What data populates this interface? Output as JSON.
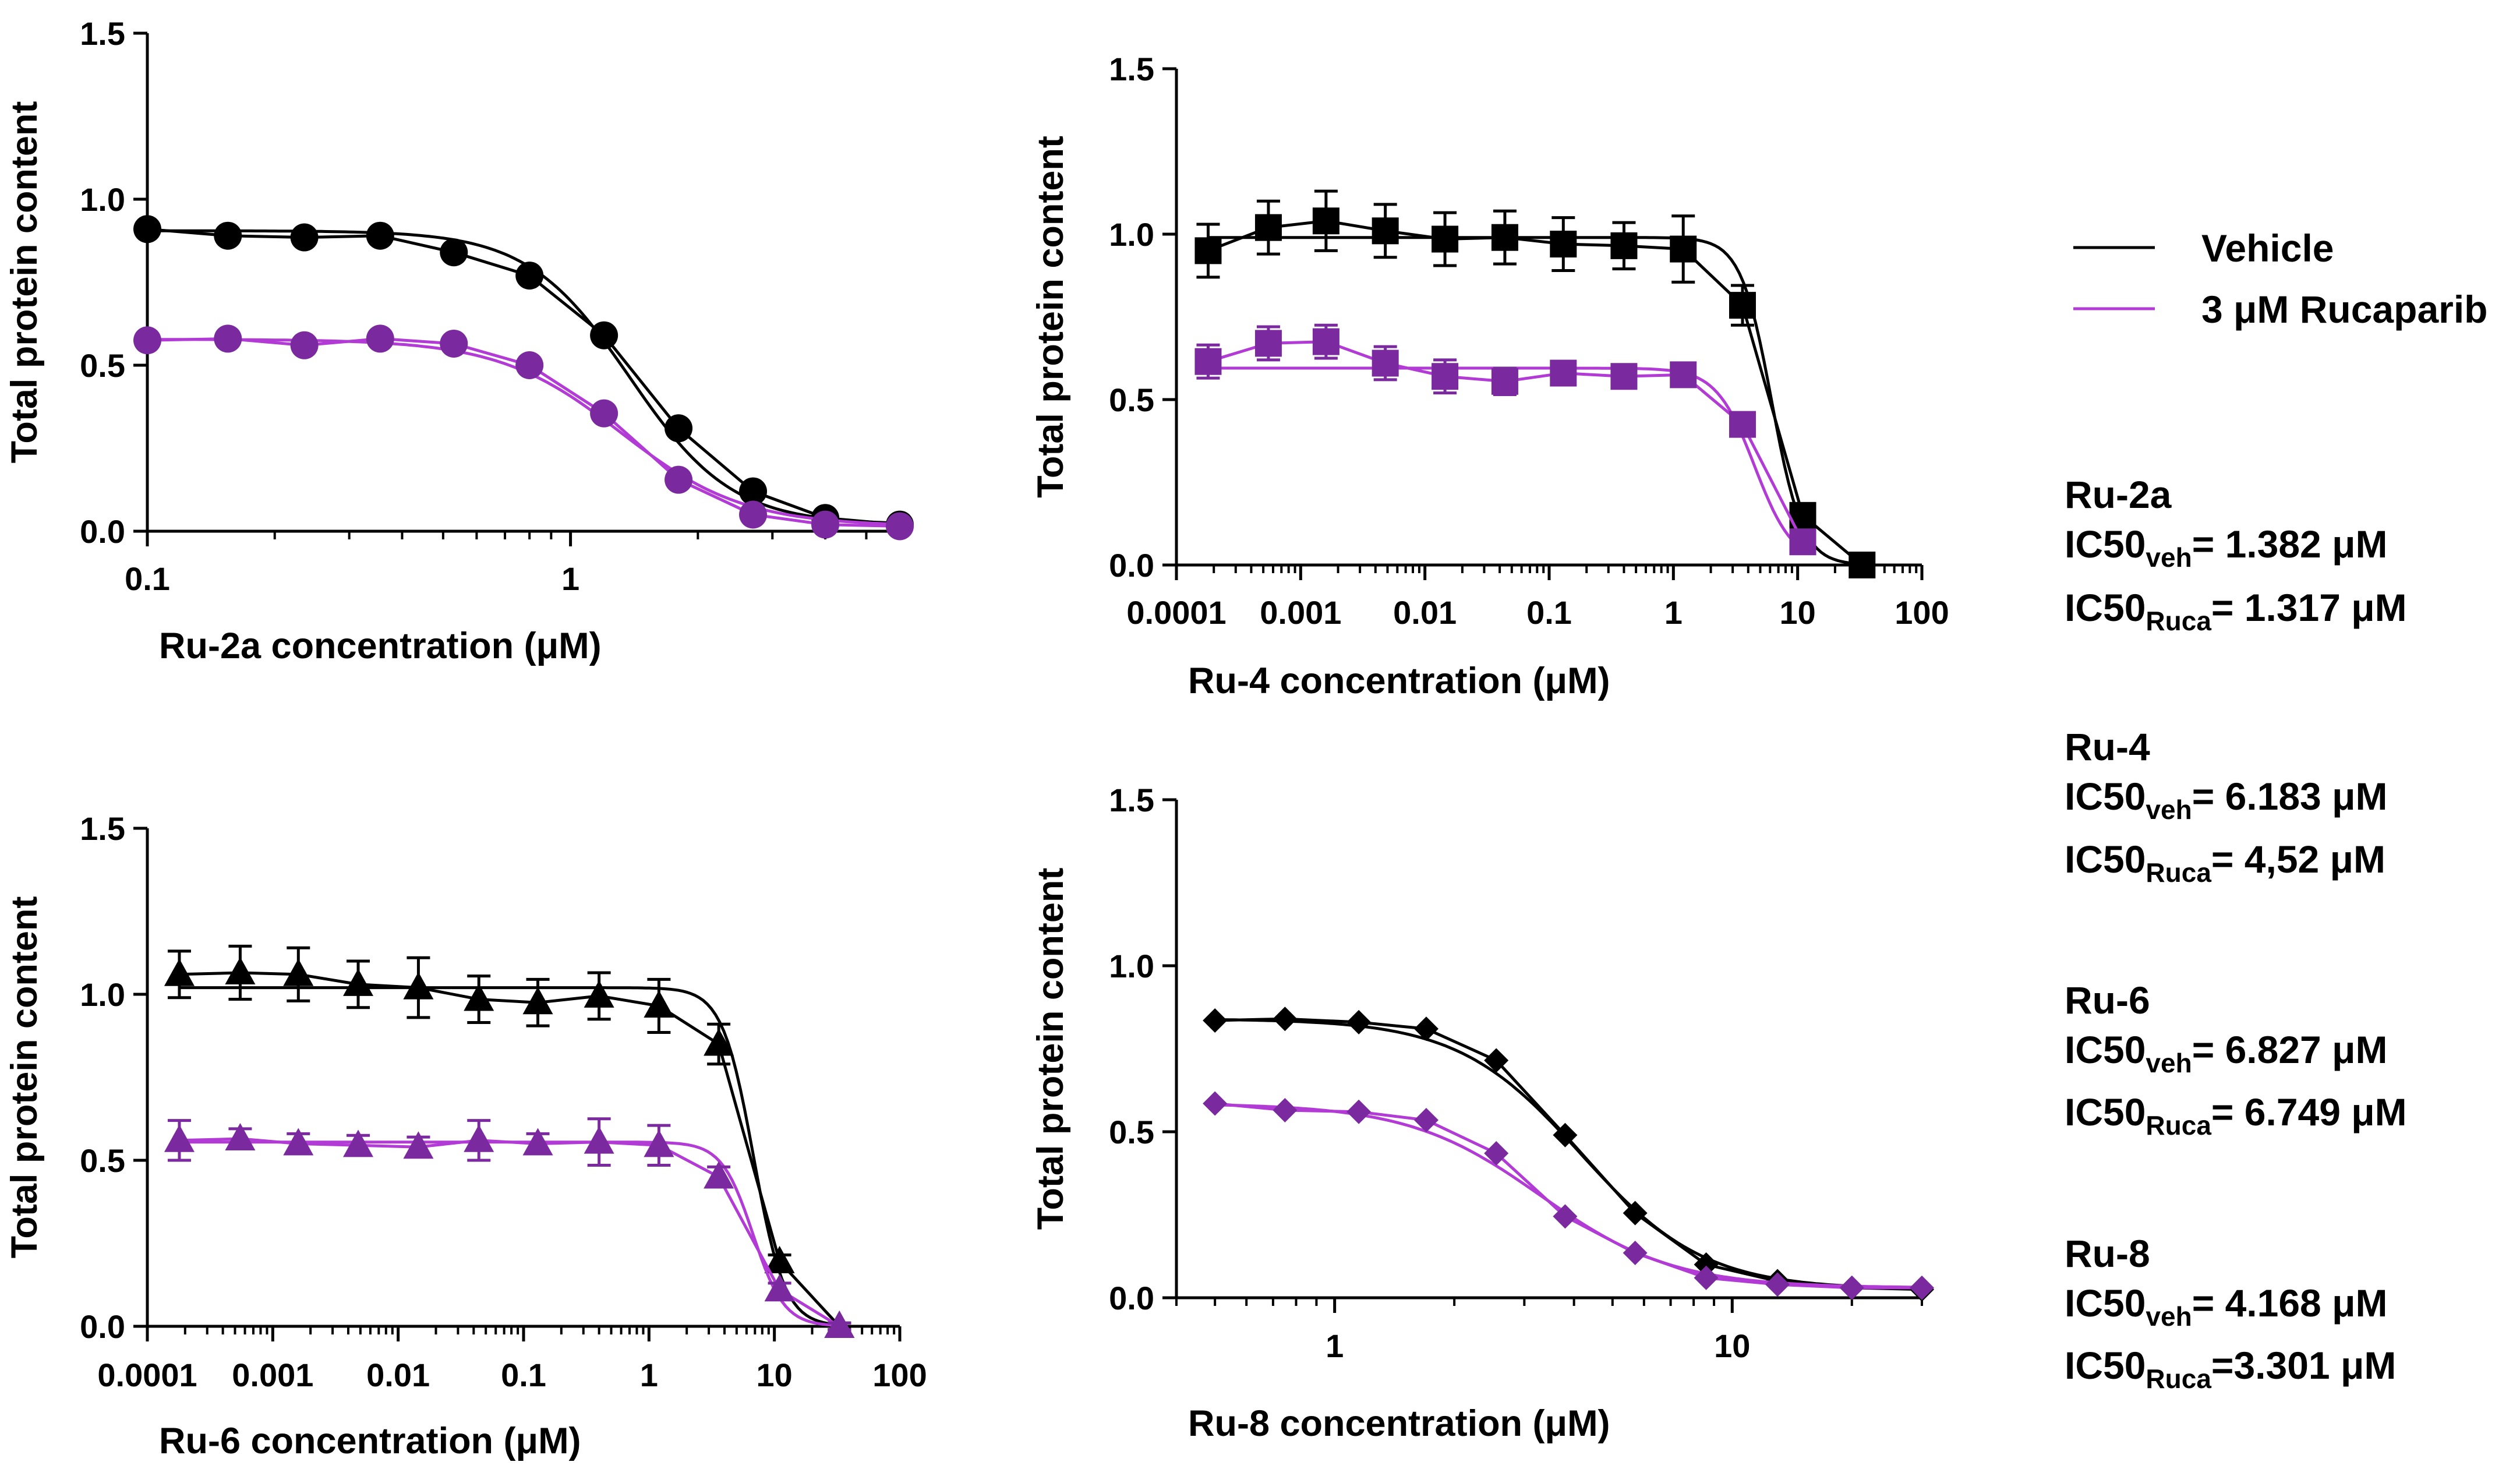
{
  "colors": {
    "vehicle": "#000000",
    "ruca_line": "#b23bd6",
    "ruca_marker": "#7a2a9e"
  },
  "legend": {
    "items": [
      {
        "label": "Vehicle",
        "color": "#000000"
      },
      {
        "label": "3 μM Rucaparib",
        "color": "#b23bd6"
      }
    ]
  },
  "annotations": [
    {
      "name": "Ru-2a",
      "veh_prefix": "IC50",
      "veh_sub": "veh",
      "veh_value": "= 1.382 μM",
      "ruca_prefix": "IC50",
      "ruca_sub": "Ruca",
      "ruca_value": "= 1.317 μM"
    },
    {
      "name": "Ru-4",
      "veh_prefix": "IC50",
      "veh_sub": "veh",
      "veh_value": "= 6.183 μM",
      "ruca_prefix": "IC50",
      "ruca_sub": "Ruca",
      "ruca_value": "= 4,52 μM"
    },
    {
      "name": "Ru-6",
      "veh_prefix": "IC50",
      "veh_sub": "veh",
      "veh_value": "= 6.827 μM",
      "ruca_prefix": "IC50",
      "ruca_sub": "Ruca",
      "ruca_value": "= 6.749 μM"
    },
    {
      "name": "Ru-8",
      "veh_prefix": "IC50",
      "veh_sub": "veh",
      "veh_value": "= 4.168 μM",
      "ruca_prefix": "IC50",
      "ruca_sub": "Ruca",
      "ruca_value": "=3.301 μM"
    }
  ],
  "chart_data": [
    {
      "type": "scatter",
      "id": "ru2a",
      "marker": "circle",
      "title": "",
      "xlabel": "Ru-2a concentration (μM)",
      "ylabel": "Total protein content",
      "xscale": "log",
      "xlim": [
        0.1,
        6
      ],
      "ylim": [
        0,
        1.5
      ],
      "xticks": [
        0.1,
        1
      ],
      "xtick_labels": [
        "0.1",
        "1"
      ],
      "yticks": [
        0,
        0.5,
        1.0,
        1.5
      ],
      "ytick_labels": [
        "0.0",
        "0.5",
        "1.0",
        "1.5"
      ],
      "minor_ticks": true,
      "error_bars": false,
      "series": [
        {
          "name": "Vehicle",
          "x": [
            0.1,
            0.155,
            0.235,
            0.355,
            0.53,
            0.8,
            1.2,
            1.8,
            2.7,
            4.0,
            6.0
          ],
          "y": [
            0.91,
            0.89,
            0.885,
            0.89,
            0.84,
            0.77,
            0.59,
            0.31,
            0.12,
            0.04,
            0.02
          ],
          "fit": {
            "top": 0.905,
            "bottom": 0.02,
            "ic50": 1.382,
            "hill": 3.6
          }
        },
        {
          "name": "3 μM Rucaparib",
          "x": [
            0.1,
            0.155,
            0.235,
            0.355,
            0.53,
            0.8,
            1.2,
            1.8,
            2.7,
            4.0,
            6.0
          ],
          "y": [
            0.575,
            0.58,
            0.56,
            0.58,
            0.565,
            0.5,
            0.355,
            0.155,
            0.05,
            0.02,
            0.015
          ],
          "fit": {
            "top": 0.578,
            "bottom": 0.015,
            "ic50": 1.317,
            "hill": 3.0
          }
        }
      ]
    },
    {
      "type": "scatter",
      "id": "ru4",
      "marker": "square",
      "title": "",
      "xlabel": "Ru-4 concentration (μM)",
      "ylabel": "Total protein content",
      "xscale": "log",
      "xlim": [
        0.0001,
        100
      ],
      "ylim": [
        0,
        1.5
      ],
      "xticks": [
        0.0001,
        0.001,
        0.01,
        0.1,
        1,
        10,
        100
      ],
      "xtick_labels": [
        "0.0001",
        "0.001",
        "0.01",
        "0.1",
        "1",
        "10",
        "100"
      ],
      "yticks": [
        0,
        0.5,
        1.0,
        1.5
      ],
      "ytick_labels": [
        "0.0",
        "0.5",
        "1.0",
        "1.5"
      ],
      "minor_ticks": true,
      "error_bars": true,
      "series": [
        {
          "name": "Vehicle",
          "x": [
            0.00018,
            0.00055,
            0.0016,
            0.0048,
            0.0145,
            0.044,
            0.13,
            0.4,
            1.2,
            3.6,
            11,
            33
          ],
          "y": [
            0.95,
            1.02,
            1.04,
            1.01,
            0.985,
            0.99,
            0.97,
            0.965,
            0.955,
            0.785,
            0.15,
            0.0
          ],
          "err": [
            0.08,
            0.08,
            0.09,
            0.08,
            0.08,
            0.08,
            0.08,
            0.07,
            0.1,
            0.06,
            0.02,
            0.01
          ],
          "fit": {
            "top": 0.99,
            "bottom": 0.0,
            "ic50": 6.183,
            "hill": 3.5
          }
        },
        {
          "name": "3 μM Rucaparib",
          "x": [
            0.00018,
            0.00055,
            0.0016,
            0.0048,
            0.0145,
            0.044,
            0.13,
            0.4,
            1.2,
            3.6,
            11
          ],
          "y": [
            0.615,
            0.67,
            0.675,
            0.61,
            0.57,
            0.555,
            0.58,
            0.57,
            0.575,
            0.425,
            0.07
          ],
          "err": [
            0.05,
            0.05,
            0.05,
            0.05,
            0.05,
            0.04,
            0.03,
            0.02,
            0.02,
            0.02,
            0.02
          ],
          "fit": {
            "top": 0.595,
            "bottom": 0.0,
            "ic50": 4.52,
            "hill": 2.8
          }
        }
      ]
    },
    {
      "type": "scatter",
      "id": "ru6",
      "marker": "triangle",
      "title": "",
      "xlabel": "Ru-6 concentration (μM)",
      "ylabel": "Total protein content",
      "xscale": "log",
      "xlim": [
        0.0001,
        100
      ],
      "ylim": [
        0,
        1.5
      ],
      "xticks": [
        0.0001,
        0.001,
        0.01,
        0.1,
        1,
        10,
        100
      ],
      "xtick_labels": [
        "0.0001",
        "0.001",
        "0.01",
        "0.1",
        "1",
        "10",
        "100"
      ],
      "yticks": [
        0,
        0.5,
        1.0,
        1.5
      ],
      "ytick_labels": [
        "0.0",
        "0.5",
        "1.0",
        "1.5"
      ],
      "minor_ticks": true,
      "error_bars": true,
      "series": [
        {
          "name": "Vehicle",
          "x": [
            0.00018,
            0.00055,
            0.0016,
            0.0048,
            0.0145,
            0.044,
            0.13,
            0.4,
            1.2,
            3.6,
            11,
            33
          ],
          "y": [
            1.06,
            1.065,
            1.06,
            1.03,
            1.02,
            0.985,
            0.975,
            0.995,
            0.965,
            0.85,
            0.195,
            0.0
          ],
          "err": [
            0.07,
            0.08,
            0.08,
            0.07,
            0.09,
            0.07,
            0.07,
            0.07,
            0.08,
            0.06,
            0.02,
            0.01
          ],
          "fit": {
            "top": 1.02,
            "bottom": 0.0,
            "ic50": 6.827,
            "hill": 3.5
          }
        },
        {
          "name": "3 μM Rucaparib",
          "x": [
            0.00018,
            0.00055,
            0.0016,
            0.0048,
            0.0145,
            0.044,
            0.13,
            0.4,
            1.2,
            3.6,
            11,
            33
          ],
          "y": [
            0.56,
            0.565,
            0.55,
            0.545,
            0.54,
            0.56,
            0.55,
            0.555,
            0.545,
            0.45,
            0.11,
            0.0
          ],
          "err": [
            0.06,
            0.03,
            0.03,
            0.03,
            0.03,
            0.06,
            0.03,
            0.07,
            0.06,
            0.03,
            0.02,
            0.01
          ],
          "fit": {
            "top": 0.555,
            "bottom": 0.0,
            "ic50": 6.749,
            "hill": 3.5
          }
        }
      ]
    },
    {
      "type": "scatter",
      "id": "ru8",
      "marker": "diamond",
      "title": "",
      "xlabel": "Ru-8 concentration (μM)",
      "ylabel": "Total protein content",
      "xscale": "log",
      "xlim": [
        0.4,
        30
      ],
      "ylim": [
        0,
        1.5
      ],
      "xticks": [
        1,
        10
      ],
      "xtick_labels": [
        "1",
        "10"
      ],
      "yticks": [
        0,
        0.5,
        1.0,
        1.5
      ],
      "ytick_labels": [
        "0.0",
        "0.5",
        "1.0",
        "1.5"
      ],
      "minor_ticks": true,
      "error_bars": false,
      "series": [
        {
          "name": "Vehicle",
          "x": [
            0.5,
            0.75,
            1.15,
            1.7,
            2.55,
            3.8,
            5.7,
            8.6,
            13,
            20,
            30
          ],
          "y": [
            0.835,
            0.84,
            0.83,
            0.81,
            0.715,
            0.49,
            0.255,
            0.1,
            0.05,
            0.03,
            0.025
          ],
          "fit": {
            "top": 0.84,
            "bottom": 0.025,
            "ic50": 4.168,
            "hill": 2.8
          }
        },
        {
          "name": "3 μM Rucaparib",
          "x": [
            0.5,
            0.75,
            1.15,
            1.7,
            2.55,
            3.8,
            5.7,
            8.6,
            13,
            20,
            30
          ],
          "y": [
            0.585,
            0.565,
            0.56,
            0.535,
            0.435,
            0.245,
            0.135,
            0.06,
            0.04,
            0.03,
            0.03
          ],
          "fit": {
            "top": 0.585,
            "bottom": 0.03,
            "ic50": 3.301,
            "hill": 2.6
          }
        }
      ]
    }
  ]
}
